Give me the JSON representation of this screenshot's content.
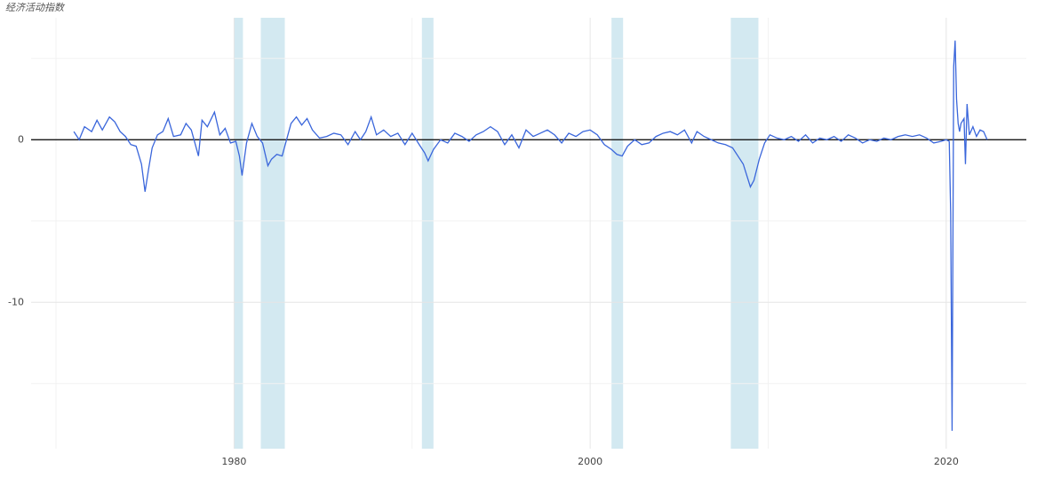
{
  "chart_data": {
    "type": "line",
    "title": "经济活动指数",
    "x": [
      1971.0,
      1971.3,
      1971.6,
      1972.0,
      1972.3,
      1972.6,
      1973.0,
      1973.3,
      1973.6,
      1973.9,
      1974.2,
      1974.5,
      1974.8,
      1975.0,
      1975.2,
      1975.4,
      1975.7,
      1976.0,
      1976.3,
      1976.6,
      1977.0,
      1977.3,
      1977.6,
      1978.0,
      1978.2,
      1978.5,
      1978.9,
      1979.2,
      1979.5,
      1979.8,
      1980.1,
      1980.3,
      1980.45,
      1980.7,
      1981.0,
      1981.3,
      1981.6,
      1981.9,
      1982.1,
      1982.4,
      1982.7,
      1983.0,
      1983.2,
      1983.5,
      1983.8,
      1984.1,
      1984.4,
      1984.8,
      1985.2,
      1985.6,
      1986.0,
      1986.4,
      1986.8,
      1987.1,
      1987.4,
      1987.7,
      1988.0,
      1988.4,
      1988.8,
      1989.2,
      1989.6,
      1990.0,
      1990.4,
      1990.7,
      1990.9,
      1991.2,
      1991.6,
      1992.0,
      1992.4,
      1992.8,
      1993.2,
      1993.6,
      1994.0,
      1994.4,
      1994.8,
      1995.2,
      1995.6,
      1996.0,
      1996.4,
      1996.8,
      1997.2,
      1997.6,
      1998.0,
      1998.4,
      1998.8,
      1999.2,
      1999.6,
      2000.0,
      2000.4,
      2000.8,
      2001.2,
      2001.5,
      2001.8,
      2002.1,
      2002.5,
      2002.9,
      2003.3,
      2003.7,
      2004.1,
      2004.5,
      2004.9,
      2005.3,
      2005.7,
      2006.0,
      2006.4,
      2006.8,
      2007.2,
      2007.6,
      2008.0,
      2008.3,
      2008.6,
      2008.8,
      2009.0,
      2009.2,
      2009.5,
      2009.8,
      2010.1,
      2010.5,
      2010.9,
      2011.3,
      2011.7,
      2012.1,
      2012.5,
      2012.9,
      2013.3,
      2013.7,
      2014.1,
      2014.5,
      2014.9,
      2015.3,
      2015.7,
      2016.1,
      2016.5,
      2016.9,
      2017.3,
      2017.7,
      2018.1,
      2018.5,
      2018.9,
      2019.3,
      2019.7,
      2020.0,
      2020.17,
      2020.25,
      2020.33,
      2020.42,
      2020.5,
      2020.58,
      2020.67,
      2020.75,
      2020.83,
      2021.0,
      2021.08,
      2021.17,
      2021.3,
      2021.5,
      2021.7,
      2021.9,
      2022.1,
      2022.3
    ],
    "series": [
      {
        "color": "#3a66db",
        "values": [
          0.5,
          0.0,
          0.8,
          0.5,
          1.2,
          0.6,
          1.4,
          1.1,
          0.5,
          0.2,
          -0.3,
          -0.4,
          -1.5,
          -3.2,
          -1.8,
          -0.5,
          0.3,
          0.5,
          1.3,
          0.2,
          0.3,
          1.0,
          0.6,
          -1.0,
          1.2,
          0.8,
          1.7,
          0.3,
          0.7,
          -0.2,
          -0.1,
          -1.0,
          -2.2,
          -0.2,
          1.0,
          0.2,
          -0.2,
          -1.6,
          -1.2,
          -0.9,
          -1.0,
          0.2,
          1.0,
          1.4,
          0.9,
          1.3,
          0.6,
          0.1,
          0.2,
          0.4,
          0.3,
          -0.3,
          0.5,
          0.0,
          0.5,
          1.4,
          0.3,
          0.6,
          0.2,
          0.4,
          -0.3,
          0.4,
          -0.3,
          -0.8,
          -1.3,
          -0.6,
          0.0,
          -0.2,
          0.4,
          0.2,
          -0.1,
          0.3,
          0.5,
          0.8,
          0.5,
          -0.3,
          0.3,
          -0.5,
          0.6,
          0.2,
          0.4,
          0.6,
          0.3,
          -0.2,
          0.4,
          0.2,
          0.5,
          0.6,
          0.3,
          -0.3,
          -0.6,
          -0.9,
          -1.0,
          -0.4,
          0.0,
          -0.3,
          -0.2,
          0.2,
          0.4,
          0.5,
          0.3,
          0.6,
          -0.2,
          0.5,
          0.2,
          0.0,
          -0.2,
          -0.3,
          -0.5,
          -1.0,
          -1.5,
          -2.2,
          -2.9,
          -2.5,
          -1.2,
          -0.2,
          0.3,
          0.1,
          0.0,
          0.2,
          -0.1,
          0.3,
          -0.2,
          0.1,
          0.0,
          0.2,
          -0.1,
          0.3,
          0.1,
          -0.2,
          0.0,
          -0.1,
          0.1,
          0.0,
          0.2,
          0.3,
          0.2,
          0.3,
          0.1,
          -0.2,
          -0.1,
          0.0,
          -0.1,
          -4.5,
          -17.9,
          4.5,
          6.1,
          2.5,
          1.0,
          0.5,
          1.0,
          1.3,
          -1.5,
          2.2,
          0.3,
          0.8,
          0.2,
          0.6,
          0.5,
          0.0
        ]
      }
    ],
    "recessions": [
      [
        1980.0,
        1980.5
      ],
      [
        1981.5,
        1982.85
      ],
      [
        1990.55,
        1991.2
      ],
      [
        2001.2,
        2001.85
      ],
      [
        2007.9,
        2009.45
      ]
    ],
    "recession_color": "#d3e9f1",
    "xlim": [
      1968.6,
      2024.5
    ],
    "xticks": [
      1980,
      2000,
      2020
    ],
    "xminor": [
      1970,
      1990,
      2010
    ],
    "ylim": [
      -19,
      7.5
    ],
    "yticks": [
      -10,
      0
    ],
    "yminor": [
      -15,
      -5,
      5
    ],
    "hline": 0,
    "grid": true
  }
}
